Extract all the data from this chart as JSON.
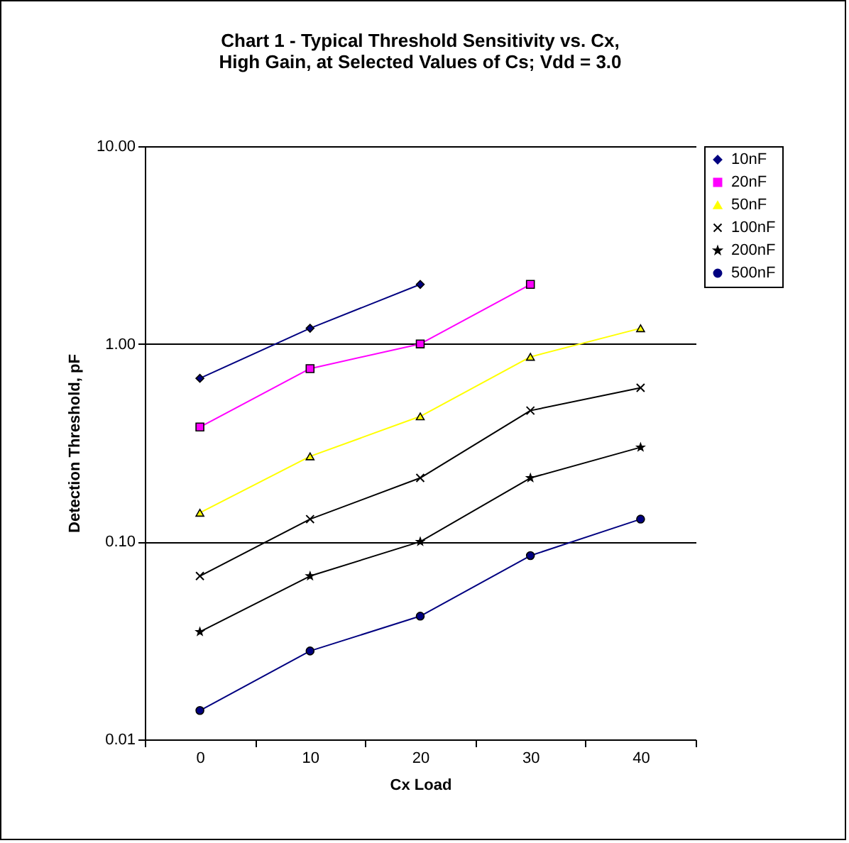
{
  "chart_data": {
    "type": "line",
    "title": "Chart 1 - Typical Threshold Sensitivity vs. Cx, High Gain, at Selected Values of Cs; Vdd = 3.0",
    "xlabel": "Cx Load",
    "ylabel": "Detection Threshold, pF",
    "categories": [
      "0",
      "10",
      "20",
      "30",
      "40"
    ],
    "series": [
      {
        "name": "10nF",
        "color": "#000080",
        "marker": "diamond",
        "values": [
          0.67,
          1.2,
          2.0,
          null,
          null
        ]
      },
      {
        "name": "20nF",
        "color": "#ff00ff",
        "marker": "square",
        "values": [
          0.38,
          0.75,
          1.0,
          2.0,
          null
        ]
      },
      {
        "name": "50nF",
        "color": "#ffff00",
        "marker": "triangle",
        "values": [
          0.14,
          0.27,
          0.43,
          0.86,
          1.2
        ]
      },
      {
        "name": "100nF",
        "color": "#000000",
        "marker": "cross",
        "values": [
          0.067,
          0.13,
          0.21,
          0.46,
          0.6
        ]
      },
      {
        "name": "200nF",
        "color": "#000000",
        "marker": "star",
        "values": [
          0.035,
          0.067,
          0.1,
          0.21,
          0.3
        ]
      },
      {
        "name": "500nF",
        "color": "#000080",
        "marker": "circle",
        "values": [
          0.014,
          0.028,
          0.042,
          0.085,
          0.13
        ]
      }
    ],
    "log": "y",
    "ylim": [
      0.01,
      10
    ],
    "yticks": [
      {
        "value": 0.01,
        "label": "0.01"
      },
      {
        "value": 0.1,
        "label": "0.10"
      },
      {
        "value": 1,
        "label": "1.00"
      },
      {
        "value": 10,
        "label": "10.00"
      }
    ],
    "grid": "y",
    "legend": "right",
    "line_style": "solid"
  }
}
